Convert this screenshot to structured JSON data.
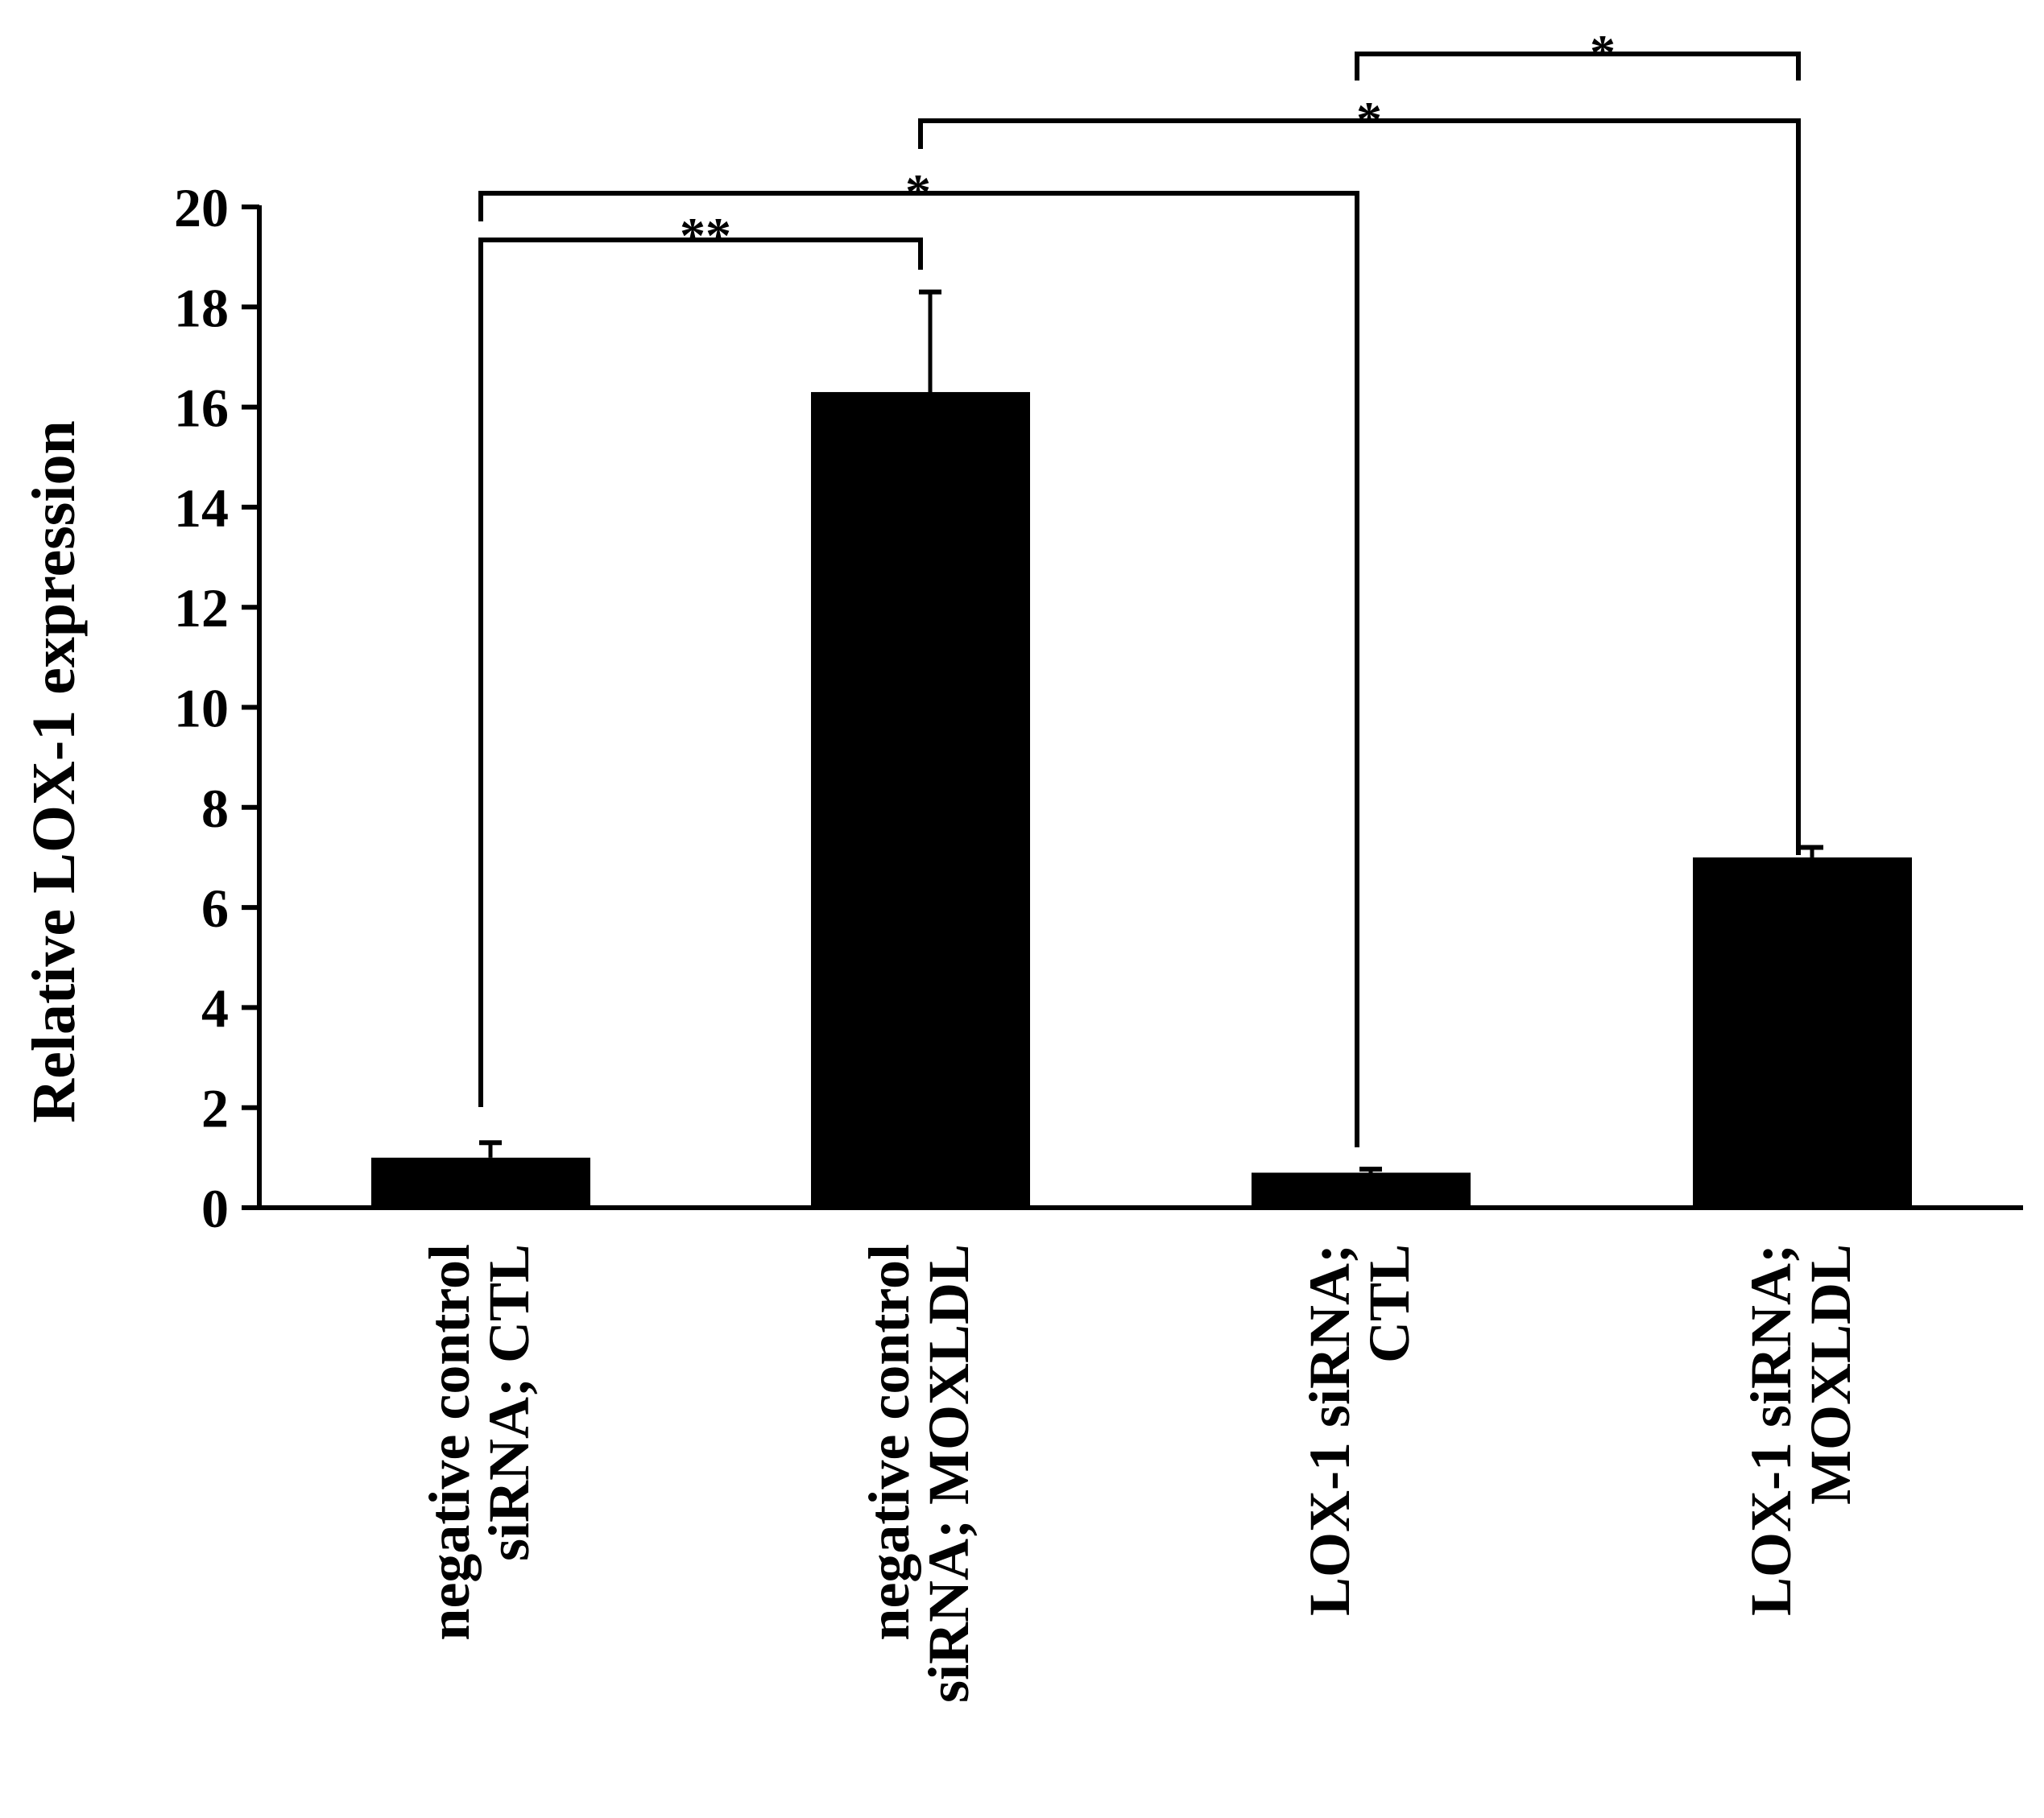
{
  "chart_data": {
    "type": "bar",
    "categories": [
      [
        "negative control",
        "siRNA; CTL"
      ],
      [
        "negative control",
        "siRNA; MOXLDL"
      ],
      [
        "LOX-1 siRNA;",
        "CTL"
      ],
      [
        "LOX-1 siRNA;",
        "MOXLDL"
      ]
    ],
    "values": [
      1.0,
      16.3,
      0.7,
      7.0
    ],
    "errors": [
      0.3,
      2.0,
      0.07,
      0.2
    ],
    "ylabel": "Relative LOX-1 expression",
    "ylim": [
      0,
      20
    ],
    "yticks": [
      "0",
      "2",
      "4",
      "6",
      "8",
      "10",
      "12",
      "14",
      "16",
      "18",
      "20"
    ],
    "bar_color": "#000000",
    "grid": false,
    "legend": "none",
    "significance": [
      {
        "from": 0,
        "to": 1,
        "label": "**"
      },
      {
        "from": 0,
        "to": 2,
        "label": "*"
      },
      {
        "from": 1,
        "to": 3,
        "label": "*"
      },
      {
        "from": 2,
        "to": 3,
        "label": "*"
      }
    ]
  }
}
